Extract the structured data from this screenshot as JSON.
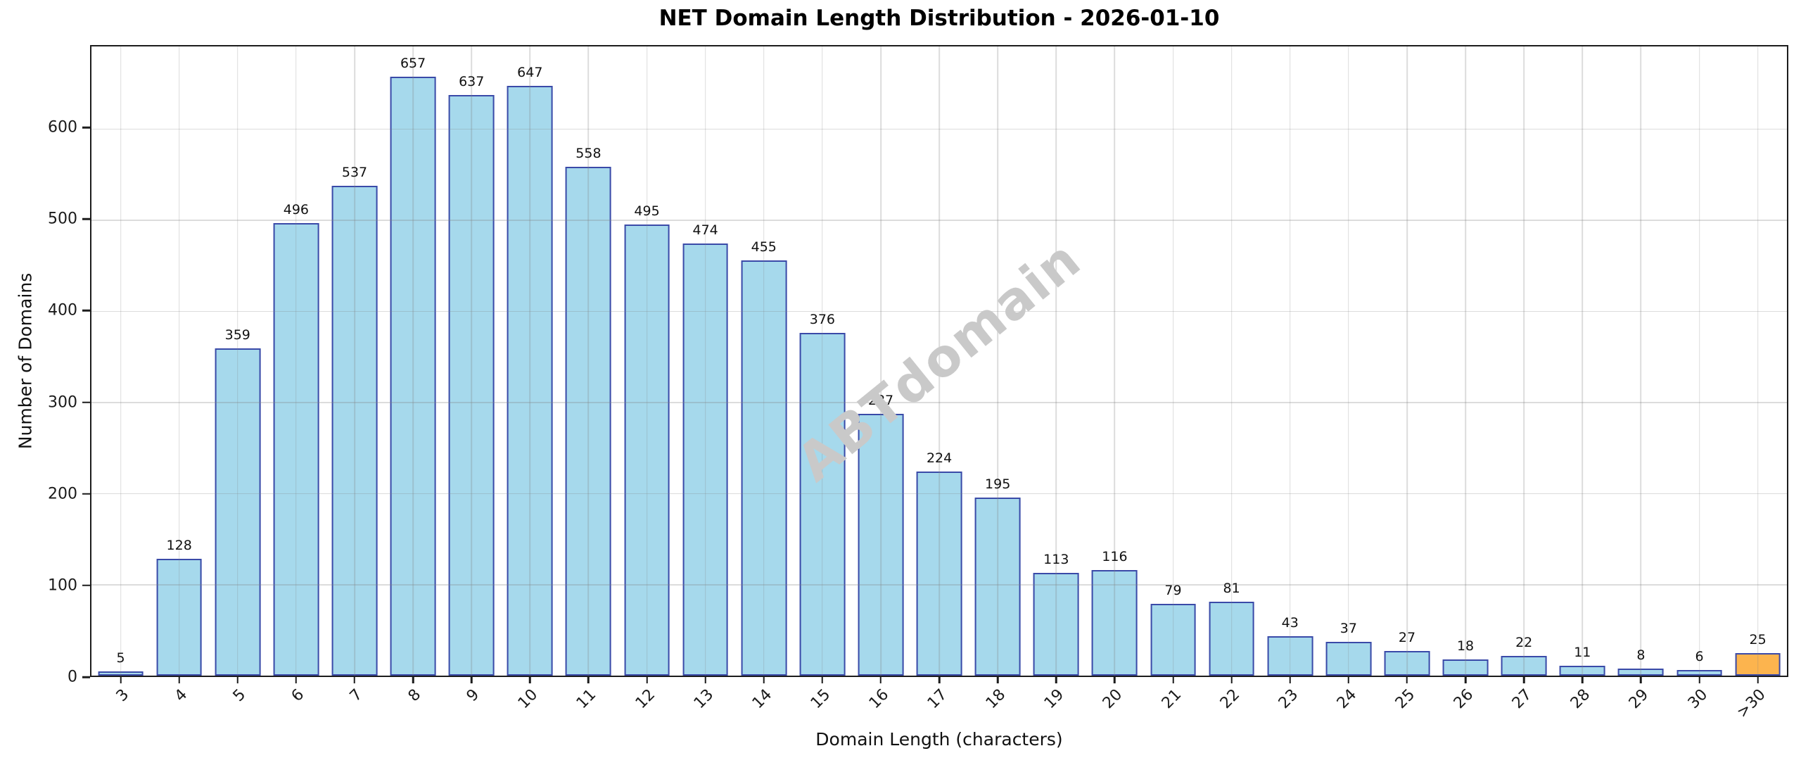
{
  "chart_data": {
    "type": "bar",
    "title": "NET Domain Length Distribution - 2026-01-10",
    "xlabel": "Domain Length (characters)",
    "ylabel": "Number of Domains",
    "categories": [
      "3",
      "4",
      "5",
      "6",
      "7",
      "8",
      "9",
      "10",
      "11",
      "12",
      "13",
      "14",
      "15",
      "16",
      "17",
      "18",
      "19",
      "20",
      "21",
      "22",
      "23",
      "24",
      "25",
      "26",
      "27",
      "28",
      "29",
      "30",
      ">30"
    ],
    "values": [
      5,
      128,
      359,
      496,
      537,
      657,
      637,
      647,
      558,
      495,
      474,
      455,
      376,
      287,
      224,
      195,
      113,
      116,
      79,
      81,
      43,
      37,
      27,
      18,
      22,
      11,
      8,
      6,
      25
    ],
    "ylim": [
      0,
      690
    ],
    "yticks": [
      0,
      100,
      200,
      300,
      400,
      500,
      600
    ],
    "grid": true,
    "legend": "none",
    "watermark": "ABTdomain",
    "colors": {
      "bar_fill": "#a6d9ec",
      "bar_fill_last": "#fcb44e",
      "bar_edge": "#3a4aa8",
      "grid": "#e0e0e0",
      "spine": "#1c1c1c",
      "watermark": "#c9c9c9"
    }
  }
}
